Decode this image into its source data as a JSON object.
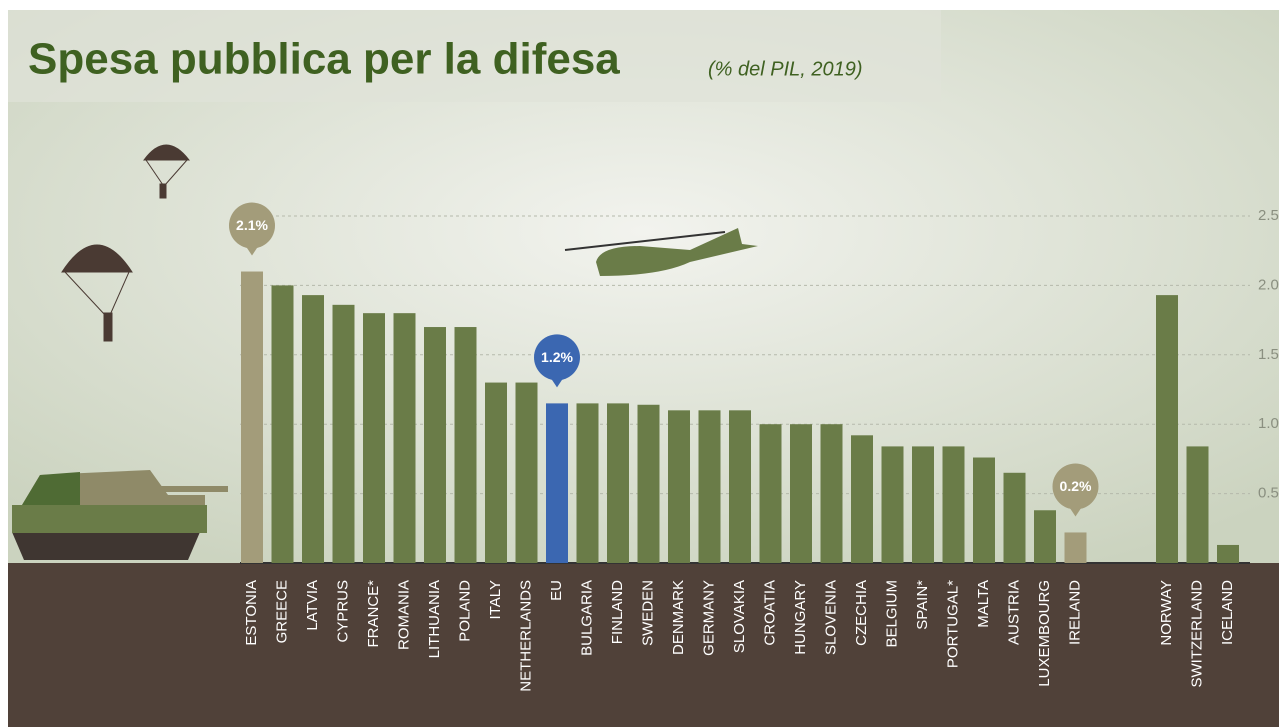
{
  "chart_data": {
    "type": "bar",
    "title": "Spesa pubblica per la difesa",
    "subtitle": "(% del PIL, 2019)",
    "categories": [
      "ESTONIA",
      "GREECE",
      "LATVIA",
      "CYPRUS",
      "FRANCE*",
      "ROMANIA",
      "LITHUANIA",
      "POLAND",
      "ITALY",
      "NETHERLANDS",
      "EU",
      "BULGARIA",
      "FINLAND",
      "SWEDEN",
      "DENMARK",
      "GERMANY",
      "SLOVAKIA",
      "CROATIA",
      "HUNGARY",
      "SLOVENIA",
      "CZECHIA",
      "BELGIUM",
      "SPAIN*",
      "PORTUGAL*",
      "MALTA",
      "AUSTRIA",
      "LUXEMBOURG",
      "IRELAND",
      null,
      null,
      "NORWAY",
      "SWITZERLAND",
      "ICELAND"
    ],
    "values": [
      2.1,
      2.0,
      1.93,
      1.86,
      1.8,
      1.8,
      1.7,
      1.7,
      1.3,
      1.3,
      1.15,
      1.15,
      1.15,
      1.14,
      1.1,
      1.1,
      1.1,
      1.0,
      1.0,
      1.0,
      0.92,
      0.84,
      0.84,
      0.84,
      0.76,
      0.65,
      0.38,
      0.22,
      null,
      null,
      1.93,
      0.84,
      0.13
    ],
    "value_labels": [
      "2.1%",
      null,
      null,
      null,
      null,
      null,
      null,
      null,
      null,
      null,
      "1.2%",
      null,
      null,
      null,
      null,
      null,
      null,
      null,
      null,
      null,
      null,
      null,
      null,
      null,
      null,
      null,
      null,
      "0.2%",
      null,
      null,
      null,
      null,
      null
    ],
    "colors": [
      "#a39c7a",
      "#6a7c48",
      "#6a7c48",
      "#6a7c48",
      "#6a7c48",
      "#6a7c48",
      "#6a7c48",
      "#6a7c48",
      "#6a7c48",
      "#6a7c48",
      "#3b67b1",
      "#6a7c48",
      "#6a7c48",
      "#6a7c48",
      "#6a7c48",
      "#6a7c48",
      "#6a7c48",
      "#6a7c48",
      "#6a7c48",
      "#6a7c48",
      "#6a7c48",
      "#6a7c48",
      "#6a7c48",
      "#6a7c48",
      "#6a7c48",
      "#6a7c48",
      "#6a7c48",
      "#a39c7a",
      null,
      null,
      "#6a7c48",
      "#6a7c48",
      "#6a7c48"
    ],
    "ylim": [
      0,
      2.5
    ],
    "yticks": [
      0.5,
      {
        "value": 1,
        "label": "1.0"
      },
      1.5,
      {
        "value": 2,
        "label": "2.0"
      },
      2.5
    ],
    "grid": true
  }
}
